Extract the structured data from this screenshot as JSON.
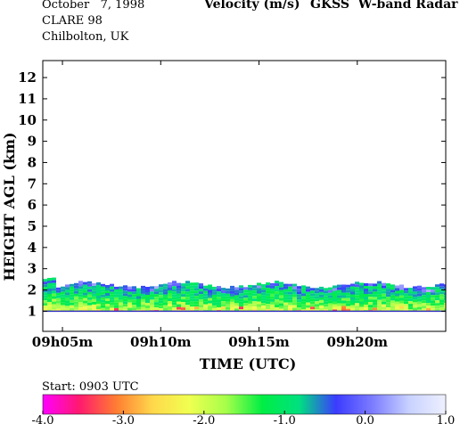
{
  "header": {
    "date": "October   7, 1998",
    "campaign": "CLARE 98",
    "location": "Chilbolton, UK",
    "title": "Velocity (m/s)",
    "instrument": "GKSS  W-band Radar"
  },
  "start_label": "Start: 0903 UTC",
  "chart_data": {
    "type": "heatmap",
    "title": "Velocity (m/s)",
    "xlabel": "TIME (UTC)",
    "ylabel": "HEIGHT AGL (km)",
    "x_tick_labels": [
      "09h05m",
      "09h10m",
      "09h15m",
      "09h20m"
    ],
    "x_ticks_minutes": [
      5,
      10,
      15,
      20
    ],
    "xlim_minutes": [
      4,
      24.5
    ],
    "y_ticks": [
      1,
      2,
      3,
      4,
      5,
      6,
      7,
      8,
      9,
      10,
      11,
      12
    ],
    "ylim": [
      0.05,
      12.8
    ],
    "colorbar": {
      "min": -4.0,
      "max": 1.0,
      "tick_labels": [
        "-4.0",
        "-3.0",
        "-2.0",
        "-1.0",
        "0.0",
        "1.0"
      ],
      "tick_values": [
        -4,
        -3,
        -2,
        -1,
        0,
        1
      ],
      "colors": [
        "#ff00ff",
        "#ff1a6e",
        "#ff7d32",
        "#ffd84c",
        "#f0ff50",
        "#a6ff4a",
        "#00ee44",
        "#00e080",
        "#3b3bff",
        "#7c7cff",
        "#c8d2ff",
        "#eef0ff"
      ]
    },
    "layers": [
      {
        "name": "cloud_top_boundary_km",
        "value": 2.25
      },
      {
        "name": "cloud_base_km",
        "value": 1.0
      },
      {
        "name": "mean_velocity_upper_ms",
        "value": -0.7
      },
      {
        "name": "mean_velocity_lower_ms",
        "value": -2.2
      }
    ]
  }
}
